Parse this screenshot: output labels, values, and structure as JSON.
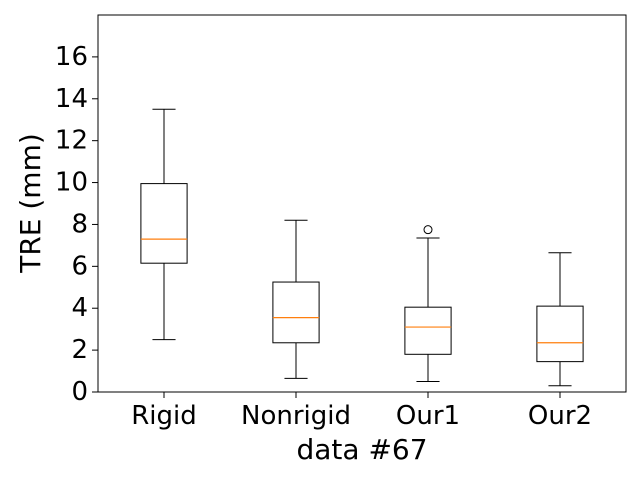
{
  "chart_data": {
    "type": "box",
    "title": "",
    "xlabel": "data #67",
    "ylabel": "TRE (mm)",
    "ylim": [
      0,
      18
    ],
    "yticks": [
      0,
      2,
      4,
      6,
      8,
      10,
      12,
      14,
      16
    ],
    "grid": false,
    "categories": [
      "Rigid",
      "Nonrigid",
      "Our1",
      "Our2"
    ],
    "boxes": [
      {
        "label": "Rigid",
        "whisker_low": 2.5,
        "q1": 6.15,
        "median": 7.3,
        "q3": 9.95,
        "whisker_high": 13.5,
        "outliers": []
      },
      {
        "label": "Nonrigid",
        "whisker_low": 0.65,
        "q1": 2.35,
        "median": 3.55,
        "q3": 5.25,
        "whisker_high": 8.2,
        "outliers": []
      },
      {
        "label": "Our1",
        "whisker_low": 0.5,
        "q1": 1.8,
        "median": 3.1,
        "q3": 4.05,
        "whisker_high": 7.35,
        "outliers": [
          7.75
        ]
      },
      {
        "label": "Our2",
        "whisker_low": 0.3,
        "q1": 1.45,
        "median": 2.35,
        "q3": 4.1,
        "whisker_high": 6.65,
        "outliers": []
      }
    ],
    "colors": {
      "box": "#000000",
      "median": "#ff7f0e",
      "background": "#ffffff"
    }
  }
}
